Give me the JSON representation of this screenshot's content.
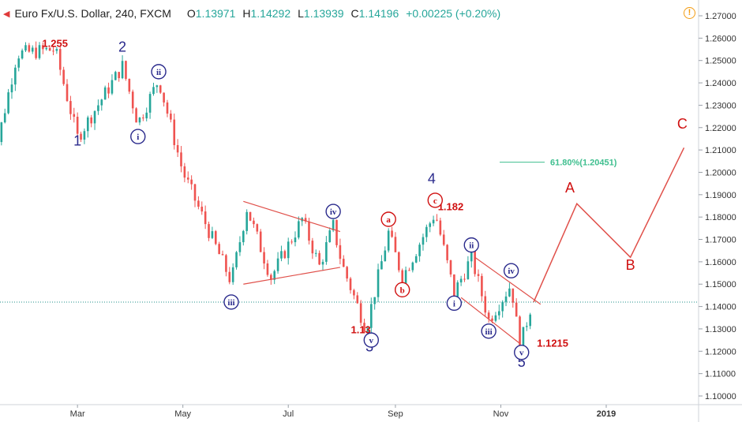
{
  "header": {
    "symbol": "Euro Fx/U.S. Dollar, 240, FXCM",
    "open_label": "O",
    "open": "1.13971",
    "high_label": "H",
    "high": "1.14292",
    "low_label": "L",
    "low": "1.13939",
    "close_label": "C",
    "close": "1.14196",
    "change": "+0.00225 (+0.20%)"
  },
  "icons": {
    "collapse": "caret-icon",
    "alert": "alert-icon",
    "alert_glyph": "!"
  },
  "colors": {
    "price_blue": "#2a2a8c",
    "price_red": "#d01010",
    "wave_red": "#c0392b",
    "fib_green": "#3fbf8f",
    "up_candle": "#26a69a",
    "down_candle": "#ef5350"
  },
  "chart_data": {
    "type": "candlestick",
    "y_axis": {
      "ylim": [
        1.097,
        1.2715
      ],
      "ticks": [
        "1.27000",
        "1.26000",
        "1.25000",
        "1.24000",
        "1.23000",
        "1.22000",
        "1.21000",
        "1.20000",
        "1.19000",
        "1.18000",
        "1.17000",
        "1.16000",
        "1.15000",
        "1.14000",
        "1.13000",
        "1.12000",
        "1.11000",
        "1.10000"
      ],
      "current_price": 1.14196
    },
    "x_axis": {
      "ticks": [
        "Mar",
        "May",
        "Jul",
        "Sep",
        "Nov",
        "2019"
      ]
    },
    "price_path": [
      [
        "2018-01-08",
        1.193
      ],
      [
        "2018-01-25",
        1.253
      ],
      [
        "2018-02-16",
        1.255
      ],
      [
        "2018-03-01",
        1.2155
      ],
      [
        "2018-03-27",
        1.2475
      ],
      [
        "2018-04-05",
        1.222
      ],
      [
        "2018-04-17",
        1.2415
      ],
      [
        "2018-05-01",
        1.2
      ],
      [
        "2018-05-29",
        1.151
      ],
      [
        "2018-06-07",
        1.184
      ],
      [
        "2018-06-21",
        1.153
      ],
      [
        "2018-07-09",
        1.179
      ],
      [
        "2018-07-19",
        1.158
      ],
      [
        "2018-07-27",
        1.176
      ],
      [
        "2018-08-01",
        1.159
      ],
      [
        "2018-08-15",
        1.13
      ],
      [
        "2018-08-28",
        1.173
      ],
      [
        "2018-09-05",
        1.153
      ],
      [
        "2018-09-24",
        1.182
      ],
      [
        "2018-10-05",
        1.146
      ],
      [
        "2018-10-15",
        1.162
      ],
      [
        "2018-10-25",
        1.134
      ],
      [
        "2018-11-07",
        1.15
      ],
      [
        "2018-11-12",
        1.1215
      ],
      [
        "2018-11-19",
        1.142
      ]
    ],
    "fibonacci": {
      "label": "61.80%(1.20451)",
      "level": 1.20451
    },
    "projection": [
      [
        "2018-11-20",
        1.142
      ],
      [
        "2018-12-15",
        1.186
      ],
      [
        "2019-01-15",
        1.162
      ],
      [
        "2019-02-15",
        1.211
      ]
    ],
    "trendlines": [
      {
        "from": [
          "2018-06-05",
          1.15
        ],
        "to": [
          "2018-07-31",
          1.1575
        ]
      },
      {
        "from": [
          "2018-06-05",
          1.187
        ],
        "to": [
          "2018-07-31",
          1.1735
        ]
      },
      {
        "from": [
          "2018-10-09",
          1.144
        ],
        "to": [
          "2018-11-12",
          1.1235
        ]
      },
      {
        "from": [
          "2018-10-17",
          1.162
        ],
        "to": [
          "2018-11-24",
          1.141
        ]
      }
    ],
    "price_labels": [
      {
        "text": "1.255",
        "date": "2018-02-16",
        "y": 1.256,
        "color": "red"
      },
      {
        "text": "1.13",
        "date": "2018-08-12",
        "y": 1.128,
        "color": "red"
      },
      {
        "text": "1.182",
        "date": "2018-10-03",
        "y": 1.183,
        "color": "red"
      },
      {
        "text": "1.1215",
        "date": "2018-12-01",
        "y": 1.122,
        "color": "red"
      }
    ],
    "wave_labels": [
      {
        "text": "1",
        "date": "2018-03-01",
        "y": 1.212,
        "style": "plain",
        "color": "blue"
      },
      {
        "text": "2",
        "date": "2018-03-27",
        "y": 1.254,
        "style": "plain",
        "color": "blue"
      },
      {
        "text": "3",
        "date": "2018-08-17",
        "y": 1.12,
        "style": "plain",
        "color": "blue"
      },
      {
        "text": "4",
        "date": "2018-09-22",
        "y": 1.195,
        "style": "plain",
        "color": "blue"
      },
      {
        "text": "5",
        "date": "2018-11-13",
        "y": 1.113,
        "style": "plain",
        "color": "blue"
      },
      {
        "text": "i",
        "date": "2018-04-05",
        "y": 1.216,
        "style": "circle",
        "color": "blue"
      },
      {
        "text": "ii",
        "date": "2018-04-17",
        "y": 1.245,
        "style": "circle",
        "color": "blue"
      },
      {
        "text": "iii",
        "date": "2018-05-29",
        "y": 1.142,
        "style": "circle",
        "color": "blue"
      },
      {
        "text": "iv",
        "date": "2018-07-27",
        "y": 1.1825,
        "style": "circle",
        "color": "blue"
      },
      {
        "text": "v",
        "date": "2018-08-18",
        "y": 1.125,
        "style": "circle",
        "color": "blue"
      },
      {
        "text": "a",
        "date": "2018-08-28",
        "y": 1.179,
        "style": "circle",
        "color": "red"
      },
      {
        "text": "b",
        "date": "2018-09-05",
        "y": 1.1475,
        "style": "circle",
        "color": "red"
      },
      {
        "text": "c",
        "date": "2018-09-24",
        "y": 1.1875,
        "style": "circle",
        "color": "red"
      },
      {
        "text": "i",
        "date": "2018-10-05",
        "y": 1.1415,
        "style": "circle",
        "color": "blue"
      },
      {
        "text": "ii",
        "date": "2018-10-15",
        "y": 1.1675,
        "style": "circle",
        "color": "blue"
      },
      {
        "text": "iii",
        "date": "2018-10-25",
        "y": 1.129,
        "style": "circle",
        "color": "blue"
      },
      {
        "text": "iv",
        "date": "2018-11-07",
        "y": 1.156,
        "style": "circle",
        "color": "blue"
      },
      {
        "text": "v",
        "date": "2018-11-13",
        "y": 1.1195,
        "style": "circle",
        "color": "blue"
      },
      {
        "text": "A",
        "date": "2018-12-11",
        "y": 1.191,
        "style": "plain",
        "color": "red"
      },
      {
        "text": "B",
        "date": "2019-01-15",
        "y": 1.1565,
        "style": "plain",
        "color": "red"
      },
      {
        "text": "C",
        "date": "2019-02-14",
        "y": 1.2195,
        "style": "plain",
        "color": "red"
      }
    ]
  }
}
